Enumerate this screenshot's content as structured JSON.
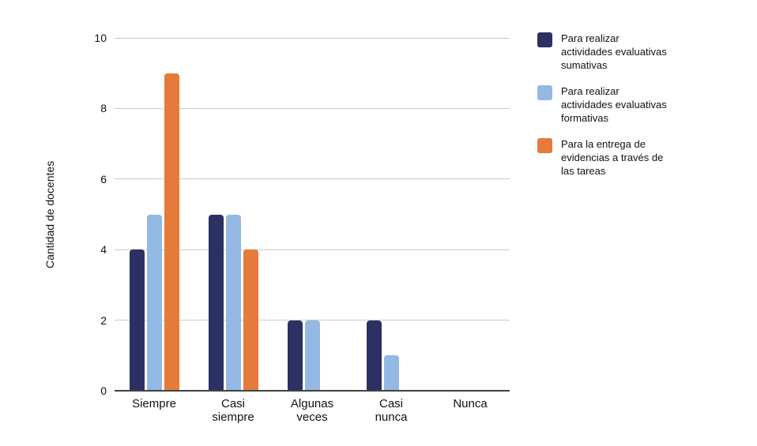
{
  "chart_data": {
    "type": "bar",
    "title": "",
    "xlabel": "",
    "ylabel": "Cantidad de docentes",
    "ylim": [
      0,
      10
    ],
    "yticks": [
      0,
      2,
      4,
      6,
      8,
      10
    ],
    "grid": "horizontal",
    "legend_position": "right",
    "background_color": "#ffffff",
    "gridline_color": "#cbcbcb",
    "axis_line_color": "#424242",
    "categories": [
      "Siempre",
      "Casi siempre",
      "Algunas veces",
      "Casi nunca",
      "Nunca"
    ],
    "series": [
      {
        "name": "Para realizar actividades evaluativas sumativas",
        "label_lines": [
          "Para realizar",
          "actividades evaluativas",
          "sumativas"
        ],
        "color": "#2B3162",
        "values": [
          4,
          5,
          2,
          2,
          0
        ]
      },
      {
        "name": "Para realizar actividades evaluativas formativas",
        "label_lines": [
          "Para realizar",
          "actividades evaluativas",
          "formativas"
        ],
        "color": "#93B8E4",
        "values": [
          5,
          5,
          2,
          1,
          0
        ]
      },
      {
        "name": "Para la entrega de evidencias a través de las tareas",
        "label_lines": [
          "Para la entrega de",
          "evidencias a través de",
          "las tareas"
        ],
        "color": "#E57A3B",
        "values": [
          9,
          4,
          0,
          0,
          0
        ]
      }
    ]
  }
}
